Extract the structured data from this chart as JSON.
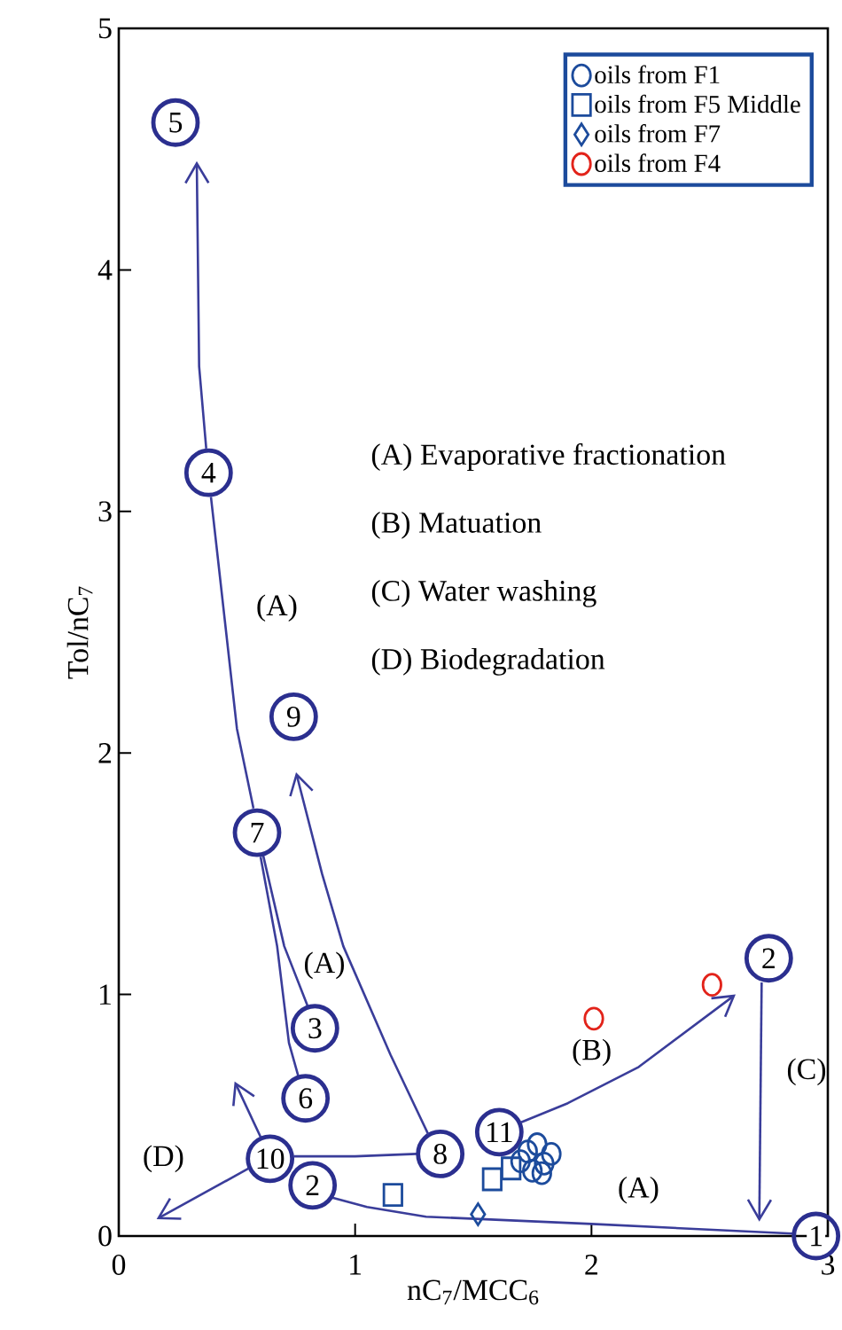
{
  "chart_data": {
    "type": "scatter",
    "xlabel": "nC$_{7}$/MCC$_{6}$",
    "ylabel": "Tol/nC$_{7}$",
    "xlim": [
      0,
      3
    ],
    "ylim": [
      0,
      5
    ],
    "xticks": [
      0,
      1,
      2,
      3
    ],
    "yticks": [
      0,
      1,
      2,
      3,
      4,
      5
    ],
    "legend": "top right",
    "series": [
      {
        "type": "line",
        "color": "#3a3d9a",
        "x": [
          0.57,
          0.5,
          0.42,
          0.39
        ],
        "values": [
          1.77,
          2.1,
          2.8,
          3.06
        ]
      },
      {
        "type": "line",
        "color": "#3a3d9a",
        "x": [
          0.61,
          0.7,
          0.8
        ],
        "values": [
          1.58,
          1.2,
          0.95
        ]
      },
      {
        "type": "line",
        "color": "#3a3d9a",
        "x": [
          0.6,
          0.67,
          0.72,
          0.76
        ],
        "values": [
          1.57,
          1.2,
          0.8,
          0.66
        ]
      },
      {
        "type": "line",
        "color": "#3a3d9a",
        "x": [
          0.74,
          1.0,
          1.26
        ],
        "values": [
          0.33,
          0.33,
          0.34
        ]
      },
      {
        "type": "line",
        "color": "#3a3d9a",
        "x": [
          2.85,
          2.0,
          1.3,
          1.05,
          0.9
        ],
        "values": [
          0.01,
          0.05,
          0.08,
          0.12,
          0.16
        ]
      },
      {
        "marker": "circle",
        "color": "#2b2f8f",
        "x": [
          0.24,
          0.38,
          0.74,
          0.585,
          0.83,
          0.79,
          0.64,
          0.82,
          1.36,
          1.61,
          2.95,
          2.75
        ],
        "values": [
          4.61,
          3.16,
          2.15,
          1.67,
          0.86,
          0.57,
          0.32,
          0.21,
          0.34,
          0.43,
          0.0,
          1.15
        ]
      },
      {
        "marker": "circle",
        "name": "oils from F1",
        "color": "#1c4b9c",
        "x": [
          1.7,
          1.73,
          1.75,
          1.77,
          1.8,
          1.83,
          1.79
        ],
        "values": [
          0.31,
          0.35,
          0.27,
          0.38,
          0.3,
          0.34,
          0.26
        ]
      },
      {
        "marker": "square",
        "name": "oils from F5 Middle",
        "color": "#1c4b9c",
        "x": [
          1.16,
          1.58,
          1.66
        ],
        "values": [
          0.17,
          0.235,
          0.28
        ]
      },
      {
        "marker": "diamond",
        "name": "oils from F7",
        "color": "#1c4b9c",
        "x": [
          1.52
        ],
        "values": [
          0.09
        ]
      },
      {
        "marker": "circle",
        "name": "oils from F4",
        "color": "#e2231a",
        "x": [
          2.01,
          2.51
        ],
        "values": [
          0.9,
          1.04
        ]
      }
    ],
    "annotations": [
      {
        "text": "5",
        "x": 0.24,
        "y": 4.61
      },
      {
        "text": "4",
        "x": 0.38,
        "y": 3.16
      },
      {
        "text": "9",
        "x": 0.74,
        "y": 2.15
      },
      {
        "text": "7",
        "x": 0.585,
        "y": 1.67
      },
      {
        "text": "3",
        "x": 0.83,
        "y": 0.86
      },
      {
        "text": "6",
        "x": 0.79,
        "y": 0.57
      },
      {
        "text": "10",
        "x": 0.64,
        "y": 0.32
      },
      {
        "text": "2",
        "x": 0.82,
        "y": 0.21
      },
      {
        "text": "8",
        "x": 1.36,
        "y": 0.34
      },
      {
        "text": "11",
        "x": 1.61,
        "y": 0.43
      },
      {
        "text": "1",
        "x": 2.95,
        "y": 0.0
      },
      {
        "text": "2",
        "x": 2.75,
        "y": 1.15
      },
      "(A)",
      "(A)",
      "(A)",
      "(B)",
      "(C)",
      "(D)",
      "(A) Evaporative fractionation",
      "(B) Matuation",
      "(C) Water washing",
      "(D) Biodegradation"
    ]
  }
}
